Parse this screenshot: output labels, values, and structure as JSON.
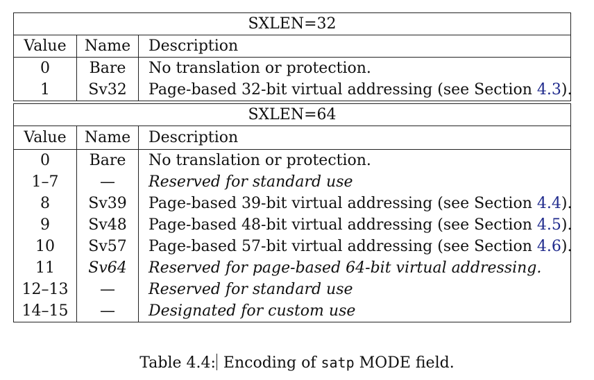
{
  "table1": {
    "title": "SXLEN=32",
    "headers": [
      "Value",
      "Name",
      "Description"
    ],
    "rows": [
      {
        "value": "0",
        "name": "Bare",
        "desc": "No translation or protection.",
        "ref": ""
      },
      {
        "value": "1",
        "name": "Sv32",
        "desc_pre": "Page-based 32-bit virtual addressing (see Section ",
        "ref": "4.3",
        "desc_post": ")."
      }
    ]
  },
  "table2": {
    "title": "SXLEN=64",
    "headers": [
      "Value",
      "Name",
      "Description"
    ],
    "rows": [
      {
        "value": "0",
        "name": "Bare",
        "desc": "No translation or protection."
      },
      {
        "value": "1–7",
        "name": "—",
        "desc": "Reserved for standard use"
      },
      {
        "value": "8",
        "name": "Sv39",
        "desc_pre": "Page-based 39-bit virtual addressing (see Section ",
        "ref": "4.4",
        "desc_post": ")."
      },
      {
        "value": "9",
        "name": "Sv48",
        "desc_pre": "Page-based 48-bit virtual addressing (see Section ",
        "ref": "4.5",
        "desc_post": ")."
      },
      {
        "value": "10",
        "name": "Sv57",
        "desc_pre": "Page-based 57-bit virtual addressing (see Section ",
        "ref": "4.6",
        "desc_post": ")."
      },
      {
        "value": "11",
        "name": "Sv64",
        "desc": "Reserved for page-based 64-bit virtual addressing."
      },
      {
        "value": "12–13",
        "name": "—",
        "desc": "Reserved for standard use"
      },
      {
        "value": "14–15",
        "name": "—",
        "desc": "Designated for custom use"
      }
    ]
  },
  "caption": {
    "label": "Table 4.4:",
    "text_pre": " Encoding of ",
    "code": "satp",
    "text_post": " MODE field."
  }
}
